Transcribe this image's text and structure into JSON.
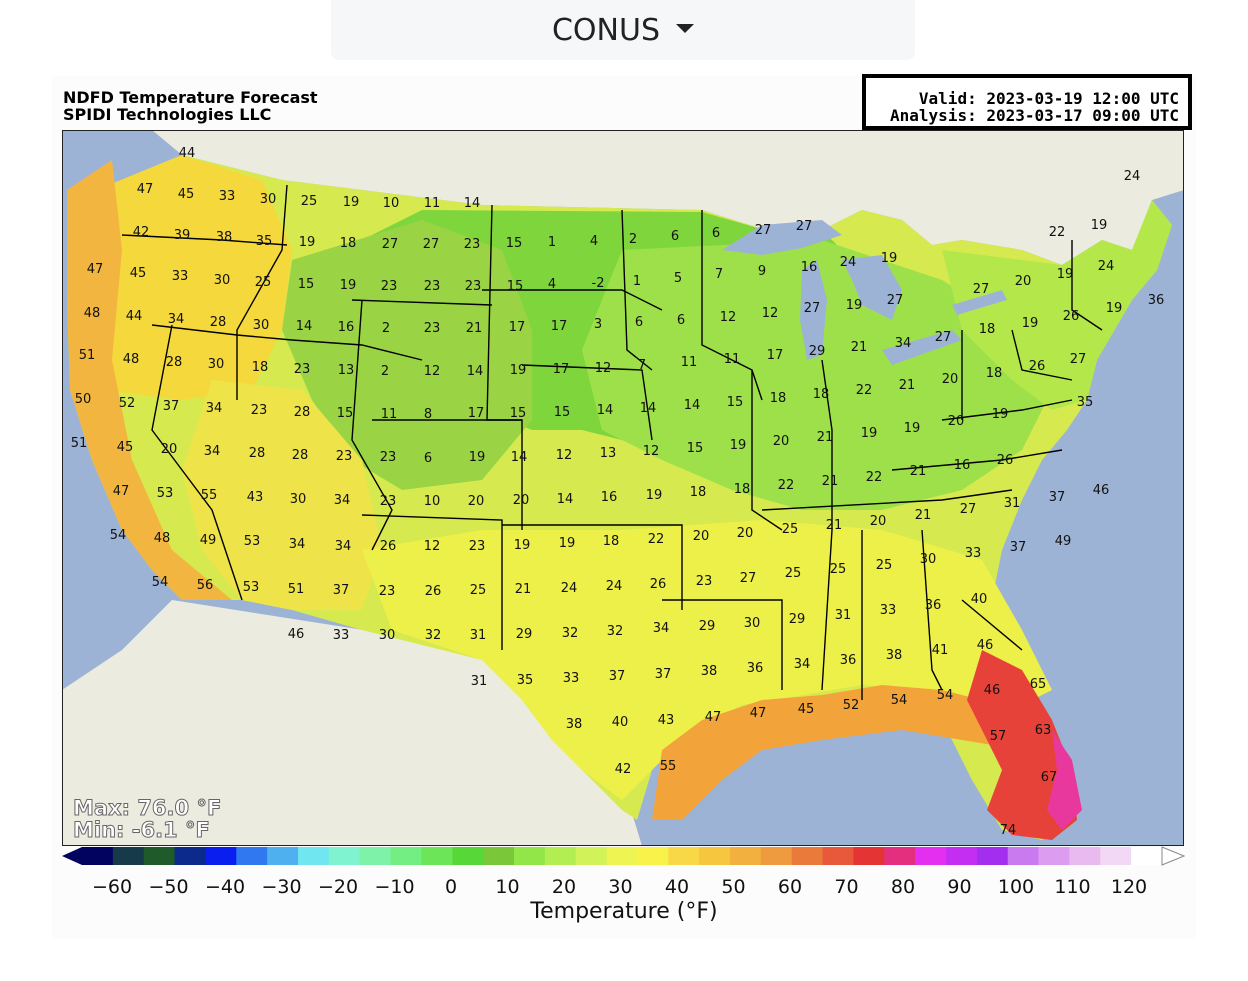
{
  "selector": {
    "label": "CONUS",
    "icon": "caret-down-icon"
  },
  "header": {
    "title": "NDFD Temperature Forecast",
    "subtitle": "SPIDI Technologies LLC",
    "valid": "Valid: 2023-03-19 12:00 UTC",
    "analysis": "Analysis: 2023-03-17 09:00 UTC"
  },
  "stats": {
    "max": "Max: 76.0 °F",
    "min": "Min: -6.1 °F"
  },
  "colorbar": {
    "title": "Temperature (°F)",
    "ticks": [
      "−60",
      "−50",
      "−40",
      "−30",
      "−20",
      "−10",
      "0",
      "10",
      "20",
      "30",
      "40",
      "50",
      "60",
      "70",
      "80",
      "90",
      "100",
      "110",
      "120"
    ],
    "colors": [
      "#02035f",
      "#163a4a",
      "#1f5a2a",
      "#0b2a8c",
      "#0a1ef0",
      "#2f78f0",
      "#4fb0f0",
      "#6fe6f0",
      "#7ff2d0",
      "#7ef2a8",
      "#72ee82",
      "#6ce658",
      "#58d838",
      "#7ac83a",
      "#92e648",
      "#b2ee52",
      "#d2f25a",
      "#eef452",
      "#f8f24a",
      "#f8d846",
      "#f6c63e",
      "#f2b03e",
      "#ee9a3e",
      "#ea7a3a",
      "#e8583a",
      "#e43434",
      "#e42e7e",
      "#e42ef0",
      "#c42ef2",
      "#a42ef0",
      "#c87aee",
      "#dc9cf0",
      "#e8baf0",
      "#f2d8f4",
      "#ffffff"
    ]
  },
  "region_colors": {
    "ocean": "#9db3d6",
    "land_outside": "#ecebdf",
    "lakes": "#9db3d6",
    "west_coast": "#f3b942",
    "pacific_nw": "#f4d23a",
    "interior_west": "#d8ec52",
    "rockies": "#94d23e",
    "north_plains": "#74cf3a",
    "midwest": "#94dd44",
    "southern_plains": "#b4e84a",
    "south": "#e8f04a",
    "southeast": "#f0d845",
    "gulf_coast": "#f2a43a",
    "florida": "#e6423a",
    "florida_hot": "#e8389e",
    "north_east": "#b6e448"
  },
  "points": [
    [
      "44",
      187,
      152
    ],
    [
      "47",
      145,
      188
    ],
    [
      "45",
      186,
      193
    ],
    [
      "33",
      227,
      195
    ],
    [
      "30",
      268,
      198
    ],
    [
      "25",
      309,
      200
    ],
    [
      "19",
      351,
      201
    ],
    [
      "10",
      391,
      202
    ],
    [
      "11",
      432,
      202
    ],
    [
      "14",
      472,
      202
    ],
    [
      "42",
      141,
      231
    ],
    [
      "39",
      182,
      234
    ],
    [
      "38",
      224,
      236
    ],
    [
      "35",
      264,
      240
    ],
    [
      "19",
      307,
      241
    ],
    [
      "18",
      348,
      242
    ],
    [
      "27",
      390,
      243
    ],
    [
      "27",
      431,
      243
    ],
    [
      "23",
      472,
      243
    ],
    [
      "15",
      514,
      242
    ],
    [
      "1",
      552,
      241
    ],
    [
      "4",
      594,
      240
    ],
    [
      "2",
      633,
      238
    ],
    [
      "6",
      675,
      235
    ],
    [
      "6",
      716,
      232
    ],
    [
      "47",
      95,
      268
    ],
    [
      "45",
      138,
      272
    ],
    [
      "33",
      180,
      275
    ],
    [
      "30",
      222,
      279
    ],
    [
      "25",
      263,
      281
    ],
    [
      "15",
      306,
      283
    ],
    [
      "19",
      348,
      284
    ],
    [
      "23",
      389,
      285
    ],
    [
      "23",
      432,
      285
    ],
    [
      "23",
      473,
      285
    ],
    [
      "15",
      515,
      285
    ],
    [
      "4",
      552,
      283
    ],
    [
      "-2",
      598,
      282
    ],
    [
      "1",
      637,
      280
    ],
    [
      "5",
      678,
      277
    ],
    [
      "7",
      719,
      273
    ],
    [
      "9",
      762,
      270
    ],
    [
      "27",
      763,
      229
    ],
    [
      "27",
      804,
      225
    ],
    [
      "16",
      809,
      266
    ],
    [
      "24",
      848,
      261
    ],
    [
      "19",
      889,
      257
    ],
    [
      "22",
      1057,
      231
    ],
    [
      "19",
      1099,
      224
    ],
    [
      "24",
      1132,
      175
    ],
    [
      "19",
      1065,
      273
    ],
    [
      "24",
      1106,
      265
    ],
    [
      "20",
      1023,
      280
    ],
    [
      "27",
      981,
      288
    ],
    [
      "48",
      92,
      312
    ],
    [
      "44",
      134,
      315
    ],
    [
      "34",
      176,
      318
    ],
    [
      "28",
      218,
      321
    ],
    [
      "30",
      261,
      324
    ],
    [
      "14",
      304,
      325
    ],
    [
      "16",
      346,
      326
    ],
    [
      "2",
      386,
      327
    ],
    [
      "23",
      432,
      327
    ],
    [
      "21",
      474,
      327
    ],
    [
      "17",
      517,
      326
    ],
    [
      "17",
      559,
      325
    ],
    [
      "3",
      598,
      323
    ],
    [
      "6",
      639,
      321
    ],
    [
      "6",
      681,
      319
    ],
    [
      "12",
      728,
      316
    ],
    [
      "12",
      770,
      312
    ],
    [
      "27",
      812,
      307
    ],
    [
      "19",
      854,
      304
    ],
    [
      "27",
      895,
      299
    ],
    [
      "26",
      1071,
      315
    ],
    [
      "19",
      1114,
      307
    ],
    [
      "36",
      1156,
      299
    ],
    [
      "18",
      987,
      328
    ],
    [
      "19",
      1030,
      322
    ],
    [
      "51",
      87,
      354
    ],
    [
      "48",
      131,
      358
    ],
    [
      "28",
      174,
      361
    ],
    [
      "30",
      216,
      363
    ],
    [
      "18",
      260,
      366
    ],
    [
      "23",
      302,
      368
    ],
    [
      "13",
      346,
      369
    ],
    [
      "2",
      385,
      370
    ],
    [
      "12",
      432,
      370
    ],
    [
      "14",
      475,
      370
    ],
    [
      "19",
      518,
      369
    ],
    [
      "17",
      561,
      368
    ],
    [
      "12",
      603,
      367
    ],
    [
      "7",
      642,
      364
    ],
    [
      "11",
      689,
      361
    ],
    [
      "11",
      732,
      358
    ],
    [
      "17",
      775,
      354
    ],
    [
      "29",
      817,
      350
    ],
    [
      "21",
      859,
      346
    ],
    [
      "34",
      903,
      342
    ],
    [
      "27",
      943,
      336
    ],
    [
      "26",
      1037,
      365
    ],
    [
      "18",
      994,
      372
    ],
    [
      "27",
      1078,
      358
    ],
    [
      "20",
      950,
      378
    ],
    [
      "50",
      83,
      398
    ],
    [
      "52",
      127,
      402
    ],
    [
      "37",
      171,
      405
    ],
    [
      "34",
      214,
      407
    ],
    [
      "23",
      259,
      409
    ],
    [
      "28",
      302,
      411
    ],
    [
      "15",
      345,
      412
    ],
    [
      "11",
      389,
      413
    ],
    [
      "8",
      428,
      413
    ],
    [
      "17",
      476,
      412
    ],
    [
      "15",
      518,
      412
    ],
    [
      "15",
      562,
      411
    ],
    [
      "14",
      605,
      409
    ],
    [
      "14",
      648,
      407
    ],
    [
      "14",
      692,
      404
    ],
    [
      "15",
      735,
      401
    ],
    [
      "18",
      778,
      397
    ],
    [
      "18",
      821,
      393
    ],
    [
      "22",
      864,
      389
    ],
    [
      "21",
      907,
      384
    ],
    [
      "35",
      1085,
      401
    ],
    [
      "19",
      1000,
      413
    ],
    [
      "20",
      956,
      420
    ],
    [
      "19",
      912,
      427
    ],
    [
      "19",
      869,
      432
    ],
    [
      "51",
      79,
      442
    ],
    [
      "45",
      125,
      446
    ],
    [
      "20",
      169,
      448
    ],
    [
      "34",
      212,
      450
    ],
    [
      "28",
      257,
      452
    ],
    [
      "28",
      300,
      454
    ],
    [
      "23",
      344,
      455
    ],
    [
      "23",
      388,
      456
    ],
    [
      "6",
      428,
      457
    ],
    [
      "19",
      477,
      456
    ],
    [
      "14",
      519,
      456
    ],
    [
      "12",
      564,
      454
    ],
    [
      "13",
      608,
      452
    ],
    [
      "12",
      651,
      450
    ],
    [
      "15",
      695,
      447
    ],
    [
      "19",
      738,
      444
    ],
    [
      "20",
      781,
      440
    ],
    [
      "21",
      825,
      436
    ],
    [
      "26",
      1005,
      459
    ],
    [
      "16",
      962,
      464
    ],
    [
      "21",
      918,
      470
    ],
    [
      "22",
      874,
      476
    ],
    [
      "21",
      830,
      480
    ],
    [
      "47",
      121,
      490
    ],
    [
      "53",
      165,
      492
    ],
    [
      "55",
      209,
      494
    ],
    [
      "43",
      255,
      496
    ],
    [
      "30",
      298,
      498
    ],
    [
      "34",
      342,
      499
    ],
    [
      "23",
      388,
      500
    ],
    [
      "10",
      432,
      500
    ],
    [
      "20",
      476,
      500
    ],
    [
      "20",
      521,
      499
    ],
    [
      "14",
      565,
      498
    ],
    [
      "16",
      609,
      496
    ],
    [
      "19",
      654,
      494
    ],
    [
      "18",
      698,
      491
    ],
    [
      "18",
      742,
      488
    ],
    [
      "22",
      786,
      484
    ],
    [
      "46",
      1101,
      489
    ],
    [
      "37",
      1057,
      496
    ],
    [
      "31",
      1012,
      502
    ],
    [
      "27",
      968,
      508
    ],
    [
      "21",
      923,
      514
    ],
    [
      "20",
      878,
      520
    ],
    [
      "21",
      834,
      524
    ],
    [
      "54",
      118,
      534
    ],
    [
      "48",
      162,
      537
    ],
    [
      "49",
      208,
      539
    ],
    [
      "53",
      252,
      540
    ],
    [
      "34",
      297,
      543
    ],
    [
      "34",
      343,
      545
    ],
    [
      "26",
      388,
      545
    ],
    [
      "12",
      432,
      545
    ],
    [
      "23",
      477,
      545
    ],
    [
      "19",
      522,
      544
    ],
    [
      "19",
      567,
      542
    ],
    [
      "18",
      611,
      540
    ],
    [
      "22",
      656,
      538
    ],
    [
      "20",
      701,
      535
    ],
    [
      "20",
      745,
      532
    ],
    [
      "25",
      790,
      528
    ],
    [
      "49",
      1063,
      540
    ],
    [
      "37",
      1018,
      546
    ],
    [
      "33",
      973,
      552
    ],
    [
      "30",
      928,
      558
    ],
    [
      "25",
      884,
      564
    ],
    [
      "25",
      838,
      568
    ],
    [
      "25",
      793,
      572
    ],
    [
      "54",
      160,
      581
    ],
    [
      "56",
      205,
      584
    ],
    [
      "53",
      251,
      586
    ],
    [
      "51",
      296,
      588
    ],
    [
      "37",
      341,
      589
    ],
    [
      "23",
      387,
      590
    ],
    [
      "26",
      433,
      590
    ],
    [
      "25",
      478,
      589
    ],
    [
      "21",
      523,
      588
    ],
    [
      "24",
      569,
      587
    ],
    [
      "24",
      614,
      585
    ],
    [
      "26",
      658,
      583
    ],
    [
      "23",
      704,
      580
    ],
    [
      "27",
      748,
      577
    ],
    [
      "40",
      979,
      598
    ],
    [
      "36",
      933,
      604
    ],
    [
      "33",
      888,
      609
    ],
    [
      "31",
      843,
      614
    ],
    [
      "29",
      797,
      618
    ],
    [
      "46",
      296,
      633
    ],
    [
      "33",
      341,
      634
    ],
    [
      "30",
      387,
      634
    ],
    [
      "32",
      433,
      634
    ],
    [
      "31",
      478,
      634
    ],
    [
      "29",
      524,
      633
    ],
    [
      "32",
      570,
      632
    ],
    [
      "32",
      615,
      630
    ],
    [
      "34",
      661,
      627
    ],
    [
      "29",
      707,
      625
    ],
    [
      "30",
      752,
      622
    ],
    [
      "46",
      985,
      644
    ],
    [
      "41",
      940,
      649
    ],
    [
      "38",
      894,
      654
    ],
    [
      "36",
      848,
      659
    ],
    [
      "34",
      802,
      663
    ],
    [
      "36",
      755,
      667
    ],
    [
      "38",
      709,
      670
    ],
    [
      "31",
      479,
      680
    ],
    [
      "35",
      525,
      679
    ],
    [
      "33",
      571,
      677
    ],
    [
      "37",
      617,
      675
    ],
    [
      "37",
      663,
      673
    ],
    [
      "65",
      1038,
      683
    ],
    [
      "46",
      992,
      689
    ],
    [
      "54",
      945,
      694
    ],
    [
      "54",
      899,
      699
    ],
    [
      "52",
      851,
      704
    ],
    [
      "45",
      806,
      708
    ],
    [
      "47",
      758,
      712
    ],
    [
      "47",
      713,
      716
    ],
    [
      "43",
      666,
      719
    ],
    [
      "40",
      620,
      721
    ],
    [
      "38",
      574,
      723
    ],
    [
      "63",
      1043,
      729
    ],
    [
      "57",
      998,
      735
    ],
    [
      "67",
      1049,
      776
    ],
    [
      "42",
      623,
      768
    ],
    [
      "55",
      668,
      765
    ],
    [
      "74",
      1008,
      829
    ]
  ]
}
